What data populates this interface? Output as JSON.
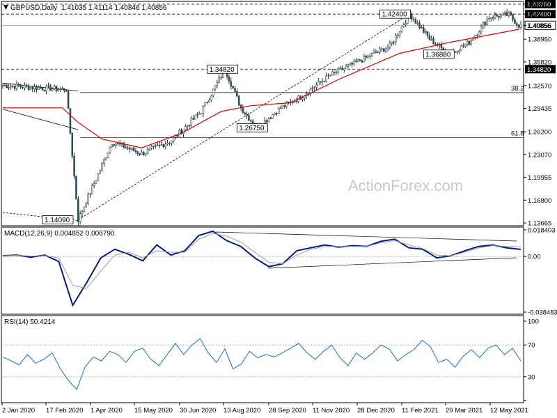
{
  "header": {
    "symbol_title": "GBPUSD,Daily",
    "ohlc": "1.41035 1.41114 1.40846 1.40856"
  },
  "watermark": "ActionForex.com",
  "chart_data": [
    {
      "type": "candlestick",
      "title": "GBPUSD,Daily",
      "y_ticks": [
        "1.43760",
        "1.42400",
        "1.40856",
        "1.38950",
        "1.35820",
        "1.32570",
        "1.29435",
        "1.26200",
        "1.23070",
        "1.19955",
        "1.16800",
        "1.13665"
      ],
      "ylim": [
        1.13665,
        1.4376
      ],
      "x_ticks": [
        "2 Jan 2020",
        "17 Feb 2020",
        "1 Apr 2020",
        "15 May 2020",
        "30 Jun 2020",
        "13 Aug 2020",
        "28 Sep 2020",
        "11 Nov 2020",
        "28 Dec 2020",
        "11 Feb 2021",
        "29 Mar 2021",
        "12 May 2021"
      ],
      "current_price": 1.40856,
      "annotations": [
        {
          "label": "1.42400",
          "value": 1.424
        },
        {
          "label": "1.34820",
          "value": 1.3482
        },
        {
          "label": "1.36880",
          "value": 1.3688
        },
        {
          "label": "1.26750",
          "value": 1.2675
        },
        {
          "label": "1.14090",
          "value": 1.1409
        }
      ],
      "horizontal_levels": [
        {
          "label": "1.43760",
          "value": 1.4376,
          "style": "dashed"
        },
        {
          "label": "1.42400",
          "value": 1.424,
          "style": "dashed"
        },
        {
          "label": "1.34820",
          "value": 1.3482,
          "style": "dashed"
        }
      ],
      "fib_levels": [
        {
          "label": "38.2",
          "value": 1.316
        },
        {
          "label": "61.8",
          "value": 1.254
        }
      ],
      "swing_points": [
        {
          "date_index": 0,
          "value": 1.326
        },
        {
          "date_index": 32,
          "value": 1.32
        },
        {
          "date_index": 38,
          "value": 1.1409
        },
        {
          "date_index": 55,
          "value": 1.248
        },
        {
          "date_index": 70,
          "value": 1.232
        },
        {
          "date_index": 85,
          "value": 1.25
        },
        {
          "date_index": 100,
          "value": 1.29
        },
        {
          "date_index": 112,
          "value": 1.3482
        },
        {
          "date_index": 120,
          "value": 1.295
        },
        {
          "date_index": 128,
          "value": 1.2675
        },
        {
          "date_index": 140,
          "value": 1.295
        },
        {
          "date_index": 150,
          "value": 1.31
        },
        {
          "date_index": 165,
          "value": 1.34
        },
        {
          "date_index": 180,
          "value": 1.36
        },
        {
          "date_index": 195,
          "value": 1.38
        },
        {
          "date_index": 205,
          "value": 1.424
        },
        {
          "date_index": 215,
          "value": 1.39
        },
        {
          "date_index": 225,
          "value": 1.3688
        },
        {
          "date_index": 235,
          "value": 1.385
        },
        {
          "date_index": 245,
          "value": 1.42
        },
        {
          "date_index": 255,
          "value": 1.423
        },
        {
          "date_index": 260,
          "value": 1.4086
        }
      ],
      "moving_average": [
        {
          "date_index": 0,
          "value": 1.295
        },
        {
          "date_index": 30,
          "value": 1.295
        },
        {
          "date_index": 38,
          "value": 1.275
        },
        {
          "date_index": 50,
          "value": 1.252
        },
        {
          "date_index": 70,
          "value": 1.24
        },
        {
          "date_index": 90,
          "value": 1.26
        },
        {
          "date_index": 110,
          "value": 1.29
        },
        {
          "date_index": 125,
          "value": 1.298
        },
        {
          "date_index": 145,
          "value": 1.302
        },
        {
          "date_index": 170,
          "value": 1.335
        },
        {
          "date_index": 200,
          "value": 1.37
        },
        {
          "date_index": 225,
          "value": 1.385
        },
        {
          "date_index": 260,
          "value": 1.403
        }
      ]
    },
    {
      "type": "line",
      "title": "MACD(12,26,9) 0.004852 0.006790",
      "y_ticks": [
        "0.018403",
        "0.00",
        "-0.038483"
      ],
      "ylim": [
        -0.038483,
        0.018403
      ],
      "series": [
        {
          "name": "MACD",
          "values": [
            0.0005,
            0.001,
            -0.0005,
            0.001,
            -0.0035,
            -0.0338,
            -0.018,
            -0.001,
            0.005,
            0.0015,
            -0.003,
            0.008,
            0.001,
            0.004,
            0.0145,
            0.0175,
            0.011,
            0.007,
            -0.001,
            -0.007,
            -0.005,
            0.004,
            0.006,
            0.008,
            0.0065,
            0.0075,
            0.007,
            0.0105,
            0.012,
            0.006,
            0.005,
            -0.001,
            0.0005,
            0.004,
            0.007,
            0.008,
            0.006,
            0.0049
          ]
        },
        {
          "name": "Signal",
          "values": [
            0.0005,
            0.0008,
            0.0003,
            0.0005,
            -0.001,
            -0.02,
            -0.022,
            -0.01,
            0.001,
            0.003,
            -0.001,
            0.004,
            0.003,
            0.003,
            0.012,
            0.016,
            0.014,
            0.01,
            0.003,
            -0.004,
            -0.005,
            0.001,
            0.005,
            0.007,
            0.007,
            0.007,
            0.007,
            0.0095,
            0.011,
            0.008,
            0.0055,
            0.001,
            0.0005,
            0.003,
            0.006,
            0.0075,
            0.007,
            0.0068
          ]
        }
      ]
    },
    {
      "type": "line",
      "title": "RSI(14) 50.4214",
      "y_ticks": [
        "100",
        "70",
        "30",
        "0"
      ],
      "ylim": [
        0,
        100
      ],
      "series": [
        {
          "name": "RSI",
          "values": [
            55,
            50,
            45,
            58,
            47,
            52,
            60,
            40,
            25,
            14,
            42,
            55,
            50,
            62,
            58,
            48,
            62,
            66,
            52,
            44,
            58,
            72,
            58,
            70,
            78,
            60,
            48,
            65,
            40,
            46,
            62,
            54,
            58,
            55,
            60,
            66,
            72,
            60,
            52,
            62,
            70,
            54,
            44,
            60,
            52,
            60,
            70,
            65,
            50,
            58,
            64,
            76,
            68,
            48,
            52,
            42,
            56,
            64,
            54,
            66,
            70,
            58,
            66,
            50
          ]
        }
      ]
    }
  ]
}
